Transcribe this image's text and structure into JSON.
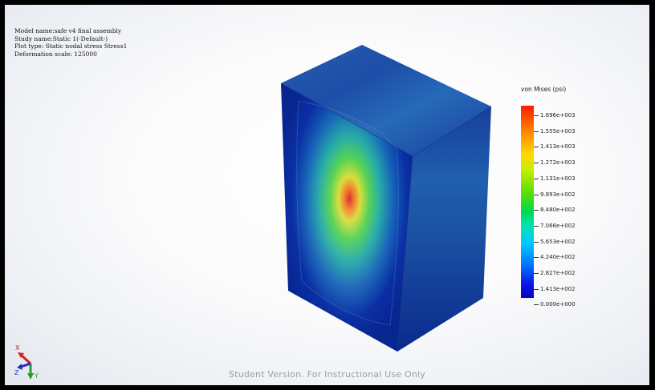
{
  "info": {
    "model_name": "Model name:safe v4 final assembly",
    "study_name": "Study name:Static 1(-Default-)",
    "plot_type": "Plot type: Static nodal stress Stress1",
    "deformation_scale": "Deformation scale: 125000"
  },
  "legend": {
    "title": "von Mises (psi)",
    "ticks": [
      "1.696e+003",
      "1.555e+003",
      "1.413e+003",
      "1.272e+003",
      "1.131e+003",
      "9.893e+002",
      "8.480e+002",
      "7.066e+002",
      "5.653e+002",
      "4.240e+002",
      "2.827e+002",
      "1.413e+002",
      "0.000e+000"
    ]
  },
  "watermark": "Student Version. For Instructional Use Only",
  "triad": {
    "x_label": "X",
    "y_label": "Y",
    "z_label": "Z"
  },
  "colors": {
    "max_stress": "#ff1a00",
    "min_stress": "#0000c8",
    "background": "#f4f6f8"
  }
}
